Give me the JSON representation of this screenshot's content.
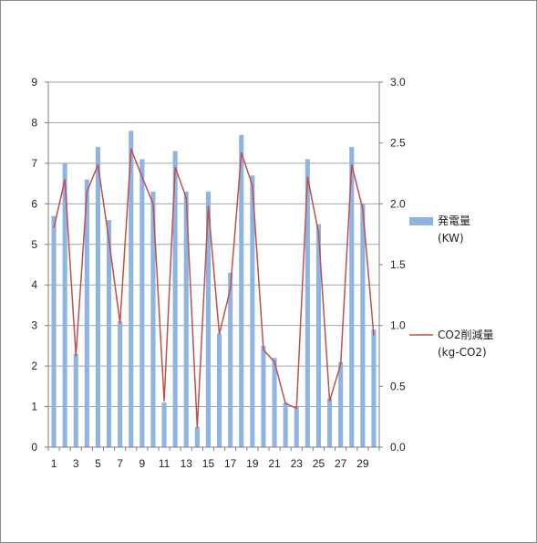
{
  "chart_data": {
    "type": "bar+line",
    "x": [
      1,
      2,
      3,
      4,
      5,
      6,
      7,
      8,
      9,
      10,
      11,
      12,
      13,
      14,
      15,
      16,
      17,
      18,
      19,
      20,
      21,
      22,
      23,
      24,
      25,
      26,
      27,
      28,
      29,
      30
    ],
    "x_tick_labels": [
      "1",
      "3",
      "5",
      "7",
      "9",
      "11",
      "13",
      "15",
      "17",
      "19",
      "21",
      "23",
      "25",
      "27",
      "29"
    ],
    "y_left": {
      "min": 0,
      "max": 9,
      "ticks": [
        "0",
        "1",
        "2",
        "3",
        "4",
        "5",
        "6",
        "7",
        "8",
        "9"
      ]
    },
    "y_right": {
      "min": 0,
      "max": 3.0,
      "ticks": [
        "0.0",
        "0.5",
        "1.0",
        "1.5",
        "2.0",
        "2.5",
        "3.0"
      ]
    },
    "grid": true,
    "legend_position": "right",
    "series": [
      {
        "name_lines": [
          "発電量",
          "(KW)"
        ],
        "type": "bar",
        "axis": "left",
        "color": "#8eb4e3",
        "values": [
          5.7,
          7.0,
          2.3,
          6.6,
          7.4,
          5.6,
          3.1,
          7.8,
          7.1,
          6.3,
          1.1,
          7.3,
          6.3,
          0.5,
          6.3,
          2.8,
          4.3,
          7.7,
          6.7,
          2.5,
          2.2,
          1.1,
          1.0,
          7.1,
          5.5,
          1.2,
          2.1,
          7.4,
          6.0,
          2.9
        ]
      },
      {
        "name_lines": [
          "CO2削減量",
          "(kg-CO2)"
        ],
        "type": "line",
        "axis": "right",
        "color": "#c0504d",
        "values": [
          1.8,
          2.2,
          0.75,
          2.1,
          2.32,
          1.7,
          1.02,
          2.45,
          2.22,
          2.0,
          0.38,
          2.3,
          2.05,
          0.16,
          1.98,
          0.93,
          1.3,
          2.42,
          2.15,
          0.8,
          0.7,
          0.36,
          0.32,
          2.22,
          1.76,
          0.38,
          0.68,
          2.32,
          1.96,
          0.92
        ]
      }
    ]
  }
}
